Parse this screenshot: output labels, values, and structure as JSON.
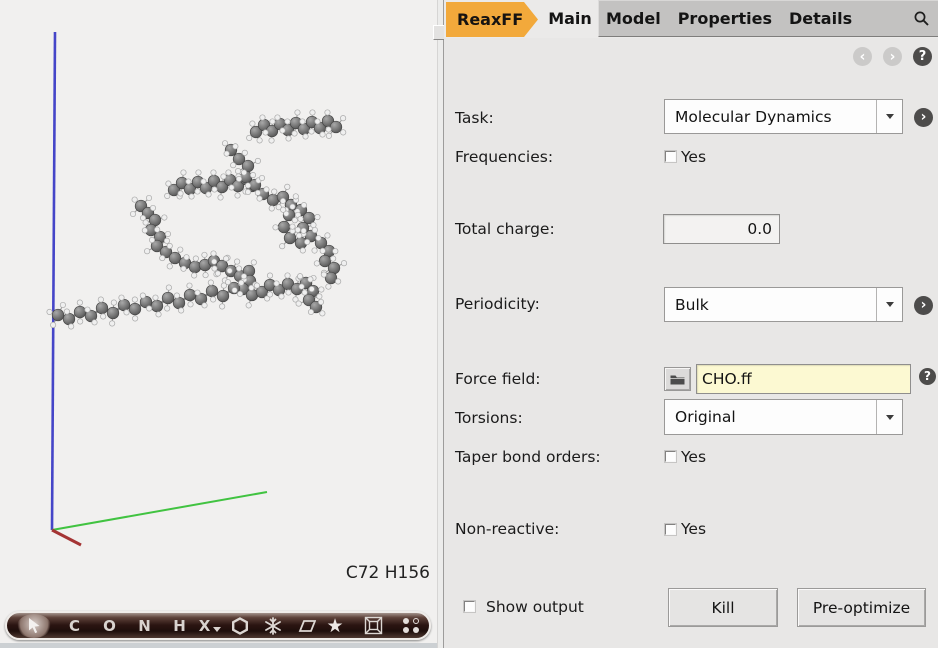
{
  "colors": {
    "accent": "#f2a93b",
    "force_field_bg": "#fcf9d2",
    "axis_blue": "#4545c8",
    "axis_green": "#41c341",
    "axis_red": "#a43434"
  },
  "tab_bar": {
    "brand": "ReaxFF",
    "active_tab": "Main",
    "tabs": [
      "Main",
      "Model",
      "Properties",
      "Details"
    ]
  },
  "nav": {
    "back": "‹",
    "forward": "›",
    "help": "?"
  },
  "viewer": {
    "formula": "C72 H156"
  },
  "toolbar": {
    "elements": [
      "C",
      "O",
      "N",
      "H",
      "X"
    ]
  },
  "form": {
    "task": {
      "label": "Task:",
      "value": "Molecular Dynamics"
    },
    "frequencies": {
      "label": "Frequencies:",
      "option": "Yes",
      "checked": false
    },
    "total_charge": {
      "label": "Total charge:",
      "value": "0.0"
    },
    "periodicity": {
      "label": "Periodicity:",
      "value": "Bulk"
    },
    "force_field": {
      "label": "Force field:",
      "value": "CHO.ff"
    },
    "torsions": {
      "label": "Torsions:",
      "value": "Original"
    },
    "taper_bond_orders": {
      "label": "Taper bond orders:",
      "option": "Yes",
      "checked": false
    },
    "non_reactive": {
      "label": "Non-reactive:",
      "option": "Yes",
      "checked": false
    },
    "show_output": {
      "label": "Show output",
      "checked": false
    },
    "buttons": {
      "kill": "Kill",
      "preoptimize": "Pre-optimize"
    }
  }
}
